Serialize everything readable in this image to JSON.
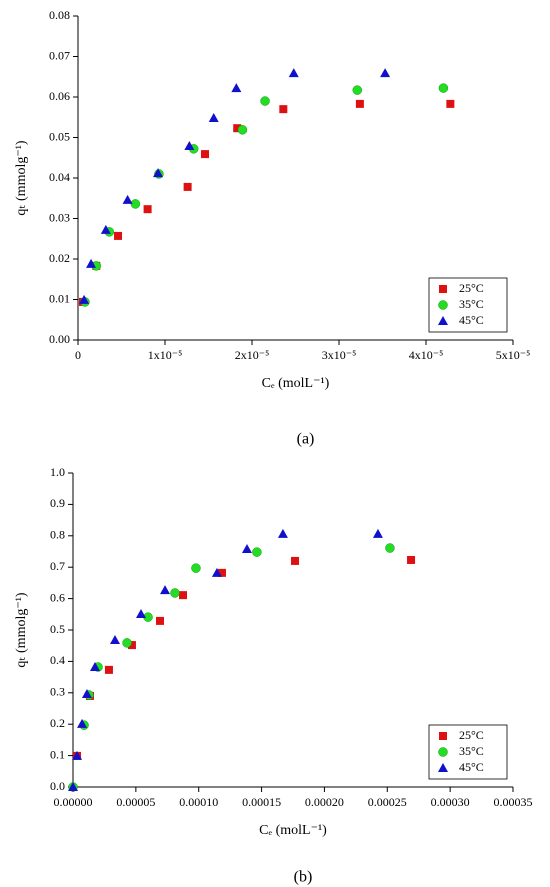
{
  "chart_data": [
    {
      "type": "scatter",
      "caption": "(a)",
      "xlabel": "Cₑ (molL⁻¹)",
      "ylabel": "qₜ (mmolg⁻¹)",
      "xlim": [
        0,
        5e-05
      ],
      "xticks": [
        0,
        {
          "value": 1e-05,
          "label": "1x10⁻⁵"
        },
        {
          "value": 2e-05,
          "label": "2x10⁻⁵"
        },
        {
          "value": 3e-05,
          "label": "3x10⁻⁵"
        },
        {
          "value": 4e-05,
          "label": "4x10⁻⁵"
        },
        {
          "value": 5e-05,
          "label": "5x10⁻⁵"
        }
      ],
      "ylim": [
        0,
        0.08
      ],
      "yticks": [
        {
          "value": 0,
          "label": "0.00"
        },
        {
          "value": 0.01,
          "label": "0.01"
        },
        {
          "value": 0.02,
          "label": "0.02"
        },
        {
          "value": 0.03,
          "label": "0.03"
        },
        {
          "value": 0.04,
          "label": "0.04"
        },
        {
          "value": 0.05,
          "label": "0.05"
        },
        {
          "value": 0.06,
          "label": "0.06"
        },
        {
          "value": 0.07,
          "label": "0.07"
        },
        {
          "value": 0.08,
          "label": "0.08"
        }
      ],
      "legend": "lower right",
      "series": [
        {
          "name": "25°C",
          "color": "#dd1111",
          "marker": "square",
          "x": [
            5.7e-07,
            2.1e-06,
            4.6e-06,
            8e-06,
            1.26e-05,
            1.46e-05,
            1.83e-05,
            2.36e-05,
            3.24e-05,
            4.28e-05
          ],
          "values": [
            0.0094,
            0.0183,
            0.0257,
            0.0323,
            0.0378,
            0.0459,
            0.0523,
            0.057,
            0.0583,
            0.0583
          ]
        },
        {
          "name": "35°C",
          "color": "#22dd22",
          "marker": "circle",
          "x": [
            8e-07,
            2.1e-06,
            3.6e-06,
            6.6e-06,
            9.3e-06,
            1.33e-05,
            1.89e-05,
            2.15e-05,
            3.21e-05,
            4.2e-05
          ],
          "values": [
            0.0094,
            0.0183,
            0.0267,
            0.0336,
            0.041,
            0.0472,
            0.0519,
            0.059,
            0.0617,
            0.0622
          ]
        },
        {
          "name": "45°C",
          "color": "#1111cc",
          "marker": "triangle",
          "x": [
            7e-07,
            1.5e-06,
            3.2e-06,
            5.7e-06,
            9.2e-06,
            1.28e-05,
            1.56e-05,
            1.82e-05,
            2.48e-05,
            3.53e-05
          ],
          "values": [
            0.0099,
            0.0188,
            0.0272,
            0.0346,
            0.0412,
            0.0479,
            0.0548,
            0.0622,
            0.0659,
            0.0659
          ]
        }
      ]
    },
    {
      "type": "scatter",
      "caption": "(b)",
      "xlabel": "Cₑ (molL⁻¹)",
      "ylabel": "qₜ (mmolg⁻¹)",
      "xlim": [
        0,
        0.00035
      ],
      "xticks": [
        {
          "value": 0,
          "label": "0.00000"
        },
        {
          "value": 5e-05,
          "label": "0.00005"
        },
        {
          "value": 0.0001,
          "label": "0.00010"
        },
        {
          "value": 0.00015,
          "label": "0.00015"
        },
        {
          "value": 0.0002,
          "label": "0.00020"
        },
        {
          "value": 0.00025,
          "label": "0.00025"
        },
        {
          "value": 0.0003,
          "label": "0.00030"
        },
        {
          "value": 0.00035,
          "label": "0.00035"
        }
      ],
      "ylim": [
        0,
        1.0
      ],
      "yticks": [
        {
          "value": 0,
          "label": "0.0"
        },
        0.1,
        0.2,
        0.3,
        0.4,
        0.5,
        0.6,
        0.7,
        0.8,
        0.9,
        {
          "value": 1.0,
          "label": "1.0"
        }
      ],
      "legend": "lower right",
      "series": [
        {
          "name": "25°C",
          "color": "#dd1111",
          "marker": "square",
          "x": [
            3.2e-06,
            1.35e-05,
            2.86e-05,
            4.69e-05,
            6.92e-05,
            8.75e-05,
            0.0001185,
            0.0001766,
            0.0002689
          ],
          "values": [
            0.099,
            0.29,
            0.373,
            0.452,
            0.529,
            0.611,
            0.682,
            0.72,
            0.723
          ]
        },
        {
          "name": "35°C",
          "color": "#22dd22",
          "marker": "circle",
          "x": [
            0,
            8.8e-06,
            1.27e-05,
            1.99e-05,
            4.3e-05,
            5.97e-05,
            8.11e-05,
            9.78e-05,
            0.0001463,
            0.0002521
          ],
          "values": [
            0,
            0.197,
            0.293,
            0.382,
            0.459,
            0.541,
            0.618,
            0.697,
            0.748,
            0.761
          ]
        },
        {
          "name": "45°C",
          "color": "#1111cc",
          "marker": "triangle",
          "x": [
            0,
            3.2e-06,
            7.2e-06,
            1.11e-05,
            1.75e-05,
            3.34e-05,
            5.41e-05,
            7.32e-05,
            0.0001145,
            0.0001384,
            0.000167,
            0.0002426
          ],
          "values": [
            0,
            0.099,
            0.201,
            0.296,
            0.382,
            0.468,
            0.551,
            0.627,
            0.682,
            0.758,
            0.806,
            0.806
          ]
        }
      ]
    }
  ]
}
